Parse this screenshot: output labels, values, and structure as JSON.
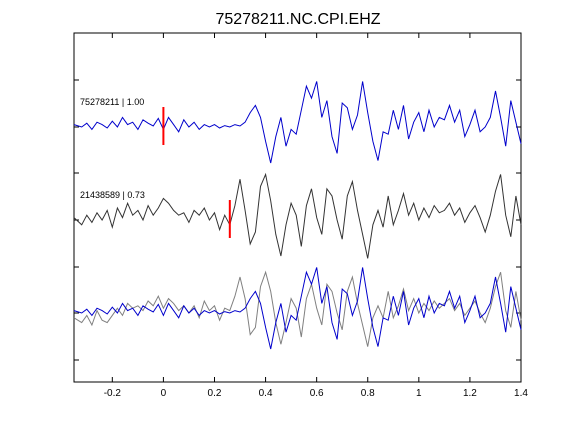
{
  "chart_data": {
    "type": "line",
    "title": "75278211.NC.CPI.EHZ",
    "xlabel": "",
    "ylabel": "",
    "xlim": [
      -0.35,
      1.4
    ],
    "x_ticks": [
      {
        "value": -0.2,
        "label": "-0.2"
      },
      {
        "value": 0,
        "label": "0"
      },
      {
        "value": 0.2,
        "label": "0.2"
      },
      {
        "value": 0.4,
        "label": "0.4"
      },
      {
        "value": 0.6,
        "label": "0.6"
      },
      {
        "value": 0.8,
        "label": "0.8"
      },
      {
        "value": 1.0,
        "label": "1"
      },
      {
        "value": 1.2,
        "label": "1.2"
      },
      {
        "value": 1.4,
        "label": "1.4"
      }
    ],
    "grid": false,
    "colors": {
      "master": "#0000cc",
      "correlated": "#333333",
      "overlay_gray": "#808080",
      "pick": "#ff0000"
    },
    "traces": [
      {
        "label": "75278211 | 1.00",
        "color": "#0000cc",
        "pick_time": 0.0,
        "t": [
          -0.35,
          -0.32,
          -0.3,
          -0.28,
          -0.26,
          -0.24,
          -0.22,
          -0.2,
          -0.18,
          -0.16,
          -0.14,
          -0.12,
          -0.1,
          -0.08,
          -0.06,
          -0.04,
          -0.02,
          0.0,
          0.02,
          0.04,
          0.06,
          0.08,
          0.1,
          0.12,
          0.14,
          0.16,
          0.18,
          0.2,
          0.22,
          0.24,
          0.26,
          0.28,
          0.3,
          0.32,
          0.34,
          0.36,
          0.38,
          0.4,
          0.42,
          0.44,
          0.46,
          0.48,
          0.5,
          0.52,
          0.54,
          0.56,
          0.58,
          0.6,
          0.62,
          0.64,
          0.66,
          0.68,
          0.7,
          0.72,
          0.74,
          0.76,
          0.78,
          0.8,
          0.82,
          0.84,
          0.86,
          0.88,
          0.9,
          0.92,
          0.94,
          0.96,
          0.98,
          1.0,
          1.02,
          1.04,
          1.06,
          1.08,
          1.1,
          1.12,
          1.14,
          1.16,
          1.18,
          1.2,
          1.22,
          1.24,
          1.26,
          1.28,
          1.3,
          1.32,
          1.34,
          1.36,
          1.38,
          1.4
        ],
        "y": [
          0.05,
          0.0,
          0.08,
          -0.05,
          0.1,
          0.05,
          -0.02,
          0.12,
          0.0,
          0.2,
          0.05,
          0.1,
          -0.05,
          0.15,
          0.08,
          0.02,
          0.18,
          -0.05,
          0.2,
          0.05,
          -0.1,
          0.15,
          0.0,
          0.1,
          -0.05,
          0.05,
          0.0,
          0.05,
          -0.02,
          0.03,
          0.0,
          0.05,
          0.02,
          0.1,
          0.3,
          0.45,
          0.2,
          -0.3,
          -0.75,
          -0.2,
          0.2,
          -0.4,
          -0.05,
          -0.15,
          0.35,
          0.85,
          0.6,
          0.95,
          0.2,
          0.55,
          -0.2,
          -0.55,
          0.5,
          0.4,
          -0.05,
          0.25,
          0.95,
          0.3,
          -0.3,
          -0.7,
          -0.1,
          -0.15,
          0.35,
          -0.05,
          0.45,
          -0.25,
          0.1,
          0.3,
          -0.1,
          0.35,
          0.0,
          0.2,
          0.15,
          0.45,
          0.1,
          0.35,
          -0.2,
          0.05,
          0.35,
          -0.1,
          0.0,
          0.2,
          0.75,
          0.2,
          -0.4,
          0.55,
          0.1,
          -0.35
        ]
      },
      {
        "label": "21438589 | 0.73",
        "color": "#333333",
        "pick_time": 0.26,
        "t": [
          -0.35,
          -0.32,
          -0.3,
          -0.28,
          -0.26,
          -0.24,
          -0.22,
          -0.2,
          -0.18,
          -0.16,
          -0.14,
          -0.12,
          -0.1,
          -0.08,
          -0.06,
          -0.04,
          -0.02,
          0.0,
          0.02,
          0.04,
          0.06,
          0.08,
          0.1,
          0.12,
          0.14,
          0.16,
          0.18,
          0.2,
          0.22,
          0.24,
          0.26,
          0.28,
          0.3,
          0.32,
          0.34,
          0.36,
          0.38,
          0.4,
          0.42,
          0.44,
          0.46,
          0.48,
          0.5,
          0.52,
          0.54,
          0.56,
          0.58,
          0.6,
          0.62,
          0.64,
          0.66,
          0.68,
          0.7,
          0.72,
          0.74,
          0.76,
          0.78,
          0.8,
          0.82,
          0.84,
          0.86,
          0.88,
          0.9,
          0.92,
          0.94,
          0.96,
          0.98,
          1.0,
          1.02,
          1.04,
          1.06,
          1.08,
          1.1,
          1.12,
          1.14,
          1.16,
          1.18,
          1.2,
          1.22,
          1.24,
          1.26,
          1.28,
          1.3,
          1.32,
          1.34,
          1.36,
          1.38,
          1.4
        ],
        "y": [
          0.05,
          -0.1,
          0.1,
          -0.05,
          0.15,
          0.0,
          0.2,
          -0.15,
          0.25,
          0.05,
          0.35,
          0.1,
          0.2,
          0.0,
          0.3,
          0.1,
          0.25,
          0.45,
          0.35,
          0.2,
          0.1,
          0.15,
          -0.05,
          0.2,
          0.1,
          0.25,
          0.0,
          0.15,
          -0.2,
          0.1,
          -0.1,
          0.3,
          0.85,
          0.2,
          -0.5,
          -0.25,
          0.7,
          0.95,
          0.4,
          -0.3,
          -0.75,
          -0.1,
          0.35,
          0.1,
          -0.55,
          0.3,
          0.65,
          0.05,
          -0.3,
          0.65,
          0.5,
          0.0,
          -0.4,
          0.5,
          0.8,
          0.2,
          -0.3,
          -0.8,
          -0.1,
          0.2,
          -0.15,
          0.5,
          -0.1,
          0.2,
          0.55,
          0.1,
          0.35,
          0.0,
          0.25,
          0.05,
          0.3,
          0.15,
          0.2,
          0.35,
          0.1,
          0.25,
          -0.05,
          0.15,
          0.3,
          0.05,
          -0.25,
          0.1,
          0.6,
          0.95,
          0.1,
          -0.35,
          0.5,
          -0.1
        ]
      },
      {
        "label": "",
        "color": "#0000cc",
        "overlay_color": "#808080",
        "t": [
          -0.35,
          -0.32,
          -0.3,
          -0.28,
          -0.26,
          -0.24,
          -0.22,
          -0.2,
          -0.18,
          -0.16,
          -0.14,
          -0.12,
          -0.1,
          -0.08,
          -0.06,
          -0.04,
          -0.02,
          0.0,
          0.02,
          0.04,
          0.06,
          0.08,
          0.1,
          0.12,
          0.14,
          0.16,
          0.18,
          0.2,
          0.22,
          0.24,
          0.26,
          0.28,
          0.3,
          0.32,
          0.34,
          0.36,
          0.38,
          0.4,
          0.42,
          0.44,
          0.46,
          0.48,
          0.5,
          0.52,
          0.54,
          0.56,
          0.58,
          0.6,
          0.62,
          0.64,
          0.66,
          0.68,
          0.7,
          0.72,
          0.74,
          0.76,
          0.78,
          0.8,
          0.82,
          0.84,
          0.86,
          0.88,
          0.9,
          0.92,
          0.94,
          0.96,
          0.98,
          1.0,
          1.02,
          1.04,
          1.06,
          1.08,
          1.1,
          1.12,
          1.14,
          1.16,
          1.18,
          1.2,
          1.22,
          1.24,
          1.26,
          1.28,
          1.3,
          1.32,
          1.34,
          1.36,
          1.38,
          1.4
        ],
        "y_blue": [
          0.05,
          0.0,
          0.08,
          -0.05,
          0.1,
          0.05,
          -0.02,
          0.12,
          0.0,
          0.2,
          0.05,
          0.1,
          -0.05,
          0.15,
          0.08,
          0.02,
          0.18,
          -0.05,
          0.2,
          0.05,
          -0.1,
          0.15,
          0.0,
          0.1,
          -0.05,
          0.05,
          0.0,
          0.05,
          -0.02,
          0.03,
          0.0,
          0.05,
          0.02,
          0.1,
          0.3,
          0.45,
          0.2,
          -0.3,
          -0.75,
          -0.2,
          0.2,
          -0.4,
          -0.05,
          -0.15,
          0.35,
          0.85,
          0.6,
          0.95,
          0.2,
          0.55,
          -0.2,
          -0.55,
          0.5,
          0.4,
          -0.05,
          0.25,
          0.95,
          0.3,
          -0.3,
          -0.7,
          -0.1,
          -0.15,
          0.35,
          -0.05,
          0.45,
          -0.25,
          0.1,
          0.3,
          -0.1,
          0.35,
          0.0,
          0.2,
          0.15,
          0.45,
          0.1,
          0.35,
          -0.2,
          0.05,
          0.35,
          -0.1,
          0.0,
          0.2,
          0.75,
          0.2,
          -0.4,
          0.55,
          0.1,
          -0.35
        ],
        "y_gray": [
          -0.1,
          -0.2,
          -0.05,
          -0.25,
          0.05,
          -0.15,
          -0.2,
          -0.05,
          0.1,
          -0.05,
          0.2,
          0.1,
          0.15,
          0.05,
          0.25,
          0.15,
          0.35,
          0.1,
          0.3,
          0.2,
          0.05,
          0.15,
          0.0,
          0.15,
          -0.1,
          0.25,
          0.05,
          0.15,
          -0.15,
          0.1,
          0.05,
          0.35,
          0.75,
          0.3,
          -0.45,
          -0.3,
          0.55,
          0.85,
          0.45,
          -0.2,
          -0.65,
          -0.2,
          0.3,
          0.1,
          -0.5,
          0.3,
          0.6,
          0.1,
          -0.25,
          0.6,
          0.45,
          0.0,
          -0.35,
          0.45,
          0.75,
          0.2,
          -0.25,
          -0.7,
          -0.1,
          0.15,
          -0.1,
          0.45,
          -0.1,
          0.15,
          0.5,
          0.05,
          0.3,
          0.0,
          0.2,
          0.05,
          0.25,
          0.1,
          0.2,
          0.3,
          0.05,
          0.2,
          -0.05,
          0.1,
          0.25,
          0.0,
          -0.2,
          0.1,
          0.55,
          0.85,
          0.05,
          -0.3,
          0.45,
          -0.15
        ]
      }
    ]
  }
}
